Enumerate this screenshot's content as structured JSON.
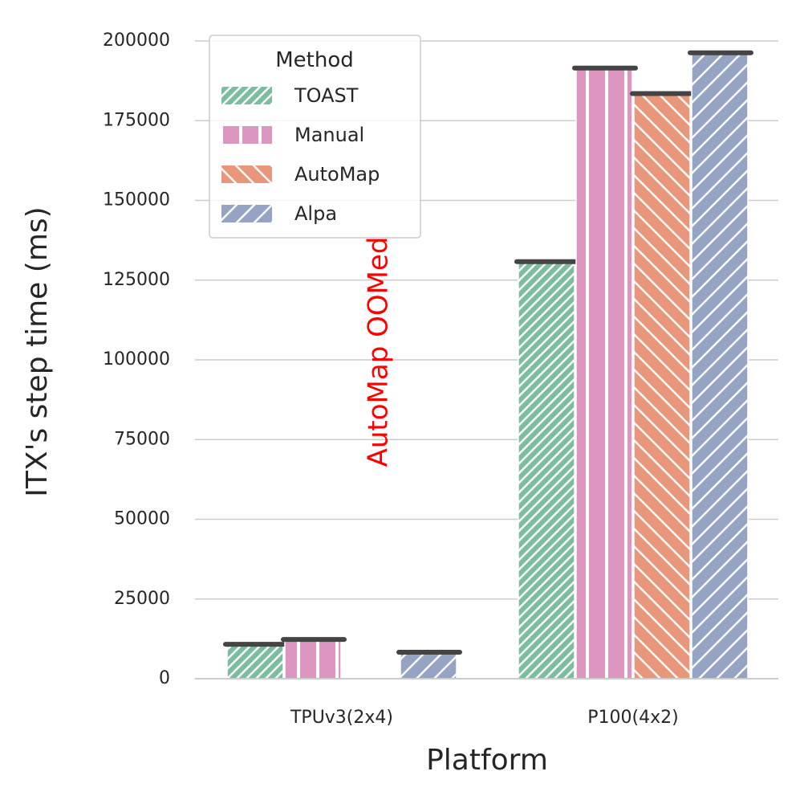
{
  "chart_data": {
    "type": "bar",
    "title": "",
    "xlabel": "Platform",
    "ylabel": "ITX's step time (ms)",
    "categories": [
      "TPUv3(2x4)",
      "P100(4x2)"
    ],
    "ylim": [
      0,
      200000
    ],
    "yticks": [
      0,
      25000,
      50000,
      75000,
      100000,
      125000,
      150000,
      175000,
      200000
    ],
    "ytick_labels": [
      "0",
      "25000",
      "50000",
      "75000",
      "100000",
      "125000",
      "150000",
      "175000",
      "200000"
    ],
    "grid": "horizontal",
    "legend_title": "Method",
    "legend_position": "top-left",
    "series": [
      {
        "name": "TOAST",
        "color": "#7dbd9f",
        "hatch": "dense-diagonal-up",
        "values": [
          10800,
          130800
        ]
      },
      {
        "name": "Manual",
        "color": "#dc96bf",
        "hatch": "vertical",
        "values": [
          12300,
          191500
        ]
      },
      {
        "name": "AutoMap",
        "color": "#e9977a",
        "hatch": "diagonal-down",
        "values": [
          null,
          183500
        ]
      },
      {
        "name": "Alpa",
        "color": "#96a4c4",
        "hatch": "diagonal-up",
        "values": [
          8300,
          196300
        ]
      }
    ],
    "annotations": [
      {
        "text": "AutoMap OOMed",
        "color": "#ff0000",
        "category": "TPUv3(2x4)",
        "series": "AutoMap"
      }
    ]
  }
}
